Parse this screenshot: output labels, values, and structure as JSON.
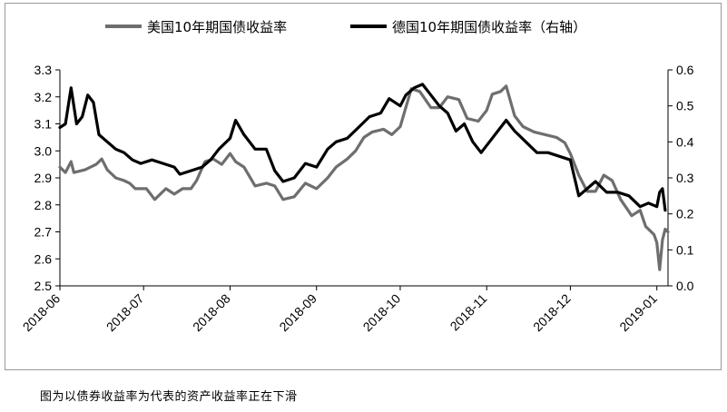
{
  "caption": "图为以债券收益率为代表的资产收益率正在下滑",
  "chart_data": {
    "type": "line",
    "title": "",
    "xlabel": "",
    "ylabel": "",
    "y2label": "",
    "legend_position": "top",
    "grid": false,
    "x_ticks": [
      {
        "label": "2018-06",
        "date": "2018-06-01"
      },
      {
        "label": "2018-07",
        "date": "2018-07-01"
      },
      {
        "label": "2018-08",
        "date": "2018-08-01"
      },
      {
        "label": "2018-09",
        "date": "2018-09-01"
      },
      {
        "label": "2018-10",
        "date": "2018-10-01"
      },
      {
        "label": "2018-11",
        "date": "2018-11-01"
      },
      {
        "label": "2018-12",
        "date": "2018-12-01"
      },
      {
        "label": "2019-01",
        "date": "2019-01-01"
      }
    ],
    "xlim": [
      "2018-06-01",
      "2019-01-05"
    ],
    "ylim": [
      2.5,
      3.3
    ],
    "y_ticks": [
      "3.3",
      "3.2",
      "3.1",
      "3.0",
      "2.9",
      "2.8",
      "2.7",
      "2.6",
      "2.5"
    ],
    "y2lim": [
      0.0,
      0.6
    ],
    "y2_ticks": [
      "0.6",
      "0.5",
      "0.4",
      "0.3",
      "0.2",
      "0.1",
      "0.0"
    ],
    "series": [
      {
        "name": "美国10年期国债收益率",
        "axis": "left",
        "color": "#6e6e6e",
        "points": [
          [
            "2018-06-01",
            2.94
          ],
          [
            "2018-06-03",
            2.92
          ],
          [
            "2018-06-05",
            2.96
          ],
          [
            "2018-06-06",
            2.92
          ],
          [
            "2018-06-10",
            2.93
          ],
          [
            "2018-06-14",
            2.95
          ],
          [
            "2018-06-16",
            2.97
          ],
          [
            "2018-06-18",
            2.93
          ],
          [
            "2018-06-21",
            2.9
          ],
          [
            "2018-06-24",
            2.89
          ],
          [
            "2018-06-26",
            2.88
          ],
          [
            "2018-06-28",
            2.86
          ],
          [
            "2018-07-02",
            2.86
          ],
          [
            "2018-07-05",
            2.82
          ],
          [
            "2018-07-09",
            2.86
          ],
          [
            "2018-07-12",
            2.84
          ],
          [
            "2018-07-15",
            2.86
          ],
          [
            "2018-07-18",
            2.86
          ],
          [
            "2018-07-20",
            2.89
          ],
          [
            "2018-07-23",
            2.96
          ],
          [
            "2018-07-26",
            2.97
          ],
          [
            "2018-07-29",
            2.95
          ],
          [
            "2018-08-01",
            2.99
          ],
          [
            "2018-08-03",
            2.96
          ],
          [
            "2018-08-06",
            2.94
          ],
          [
            "2018-08-10",
            2.87
          ],
          [
            "2018-08-14",
            2.88
          ],
          [
            "2018-08-17",
            2.87
          ],
          [
            "2018-08-20",
            2.82
          ],
          [
            "2018-08-24",
            2.83
          ],
          [
            "2018-08-28",
            2.88
          ],
          [
            "2018-09-01",
            2.86
          ],
          [
            "2018-09-05",
            2.9
          ],
          [
            "2018-09-08",
            2.94
          ],
          [
            "2018-09-12",
            2.97
          ],
          [
            "2018-09-15",
            3.0
          ],
          [
            "2018-09-18",
            3.05
          ],
          [
            "2018-09-21",
            3.07
          ],
          [
            "2018-09-25",
            3.08
          ],
          [
            "2018-09-28",
            3.06
          ],
          [
            "2018-10-01",
            3.09
          ],
          [
            "2018-10-03",
            3.16
          ],
          [
            "2018-10-05",
            3.23
          ],
          [
            "2018-10-08",
            3.22
          ],
          [
            "2018-10-12",
            3.16
          ],
          [
            "2018-10-15",
            3.16
          ],
          [
            "2018-10-18",
            3.2
          ],
          [
            "2018-10-22",
            3.19
          ],
          [
            "2018-10-25",
            3.12
          ],
          [
            "2018-10-29",
            3.11
          ],
          [
            "2018-11-01",
            3.15
          ],
          [
            "2018-11-03",
            3.21
          ],
          [
            "2018-11-06",
            3.22
          ],
          [
            "2018-11-08",
            3.24
          ],
          [
            "2018-11-11",
            3.13
          ],
          [
            "2018-11-14",
            3.09
          ],
          [
            "2018-11-18",
            3.07
          ],
          [
            "2018-11-22",
            3.06
          ],
          [
            "2018-11-26",
            3.05
          ],
          [
            "2018-11-29",
            3.03
          ],
          [
            "2018-12-01",
            2.99
          ],
          [
            "2018-12-04",
            2.91
          ],
          [
            "2018-12-07",
            2.85
          ],
          [
            "2018-12-10",
            2.85
          ],
          [
            "2018-12-13",
            2.91
          ],
          [
            "2018-12-16",
            2.89
          ],
          [
            "2018-12-19",
            2.82
          ],
          [
            "2018-12-21",
            2.79
          ],
          [
            "2018-12-23",
            2.76
          ],
          [
            "2018-12-26",
            2.78
          ],
          [
            "2018-12-28",
            2.72
          ],
          [
            "2018-12-31",
            2.69
          ],
          [
            "2019-01-01",
            2.66
          ],
          [
            "2019-01-02",
            2.56
          ],
          [
            "2019-01-03",
            2.67
          ],
          [
            "2019-01-04",
            2.71
          ],
          [
            "2019-01-05",
            2.7
          ]
        ]
      },
      {
        "name": "德国10年期国债收益率（右轴）",
        "axis": "right",
        "color": "#000000",
        "points": [
          [
            "2018-06-01",
            0.44
          ],
          [
            "2018-06-03",
            0.45
          ],
          [
            "2018-06-05",
            0.55
          ],
          [
            "2018-06-07",
            0.45
          ],
          [
            "2018-06-09",
            0.47
          ],
          [
            "2018-06-11",
            0.53
          ],
          [
            "2018-06-13",
            0.51
          ],
          [
            "2018-06-15",
            0.42
          ],
          [
            "2018-06-18",
            0.4
          ],
          [
            "2018-06-21",
            0.38
          ],
          [
            "2018-06-24",
            0.37
          ],
          [
            "2018-06-27",
            0.35
          ],
          [
            "2018-06-30",
            0.34
          ],
          [
            "2018-07-04",
            0.35
          ],
          [
            "2018-07-08",
            0.34
          ],
          [
            "2018-07-12",
            0.33
          ],
          [
            "2018-07-14",
            0.31
          ],
          [
            "2018-07-18",
            0.32
          ],
          [
            "2018-07-22",
            0.33
          ],
          [
            "2018-07-25",
            0.35
          ],
          [
            "2018-07-28",
            0.38
          ],
          [
            "2018-08-01",
            0.41
          ],
          [
            "2018-08-03",
            0.46
          ],
          [
            "2018-08-06",
            0.42
          ],
          [
            "2018-08-10",
            0.38
          ],
          [
            "2018-08-14",
            0.38
          ],
          [
            "2018-08-17",
            0.32
          ],
          [
            "2018-08-20",
            0.29
          ],
          [
            "2018-08-24",
            0.3
          ],
          [
            "2018-08-28",
            0.34
          ],
          [
            "2018-09-01",
            0.33
          ],
          [
            "2018-09-05",
            0.38
          ],
          [
            "2018-09-08",
            0.4
          ],
          [
            "2018-09-12",
            0.41
          ],
          [
            "2018-09-16",
            0.44
          ],
          [
            "2018-09-20",
            0.47
          ],
          [
            "2018-09-24",
            0.48
          ],
          [
            "2018-09-27",
            0.52
          ],
          [
            "2018-10-01",
            0.5
          ],
          [
            "2018-10-03",
            0.53
          ],
          [
            "2018-10-06",
            0.55
          ],
          [
            "2018-10-09",
            0.56
          ],
          [
            "2018-10-12",
            0.53
          ],
          [
            "2018-10-15",
            0.5
          ],
          [
            "2018-10-18",
            0.48
          ],
          [
            "2018-10-21",
            0.43
          ],
          [
            "2018-10-24",
            0.45
          ],
          [
            "2018-10-27",
            0.4
          ],
          [
            "2018-10-30",
            0.37
          ],
          [
            "2018-11-02",
            0.4
          ],
          [
            "2018-11-05",
            0.43
          ],
          [
            "2018-11-08",
            0.46
          ],
          [
            "2018-11-11",
            0.43
          ],
          [
            "2018-11-15",
            0.4
          ],
          [
            "2018-11-19",
            0.37
          ],
          [
            "2018-11-23",
            0.37
          ],
          [
            "2018-11-27",
            0.36
          ],
          [
            "2018-12-01",
            0.35
          ],
          [
            "2018-12-04",
            0.25
          ],
          [
            "2018-12-07",
            0.27
          ],
          [
            "2018-12-10",
            0.29
          ],
          [
            "2018-12-14",
            0.26
          ],
          [
            "2018-12-18",
            0.26
          ],
          [
            "2018-12-22",
            0.25
          ],
          [
            "2018-12-26",
            0.22
          ],
          [
            "2018-12-29",
            0.23
          ],
          [
            "2019-01-01",
            0.22
          ],
          [
            "2019-01-02",
            0.26
          ],
          [
            "2019-01-03",
            0.27
          ],
          [
            "2019-01-04",
            0.21
          ]
        ]
      }
    ]
  }
}
